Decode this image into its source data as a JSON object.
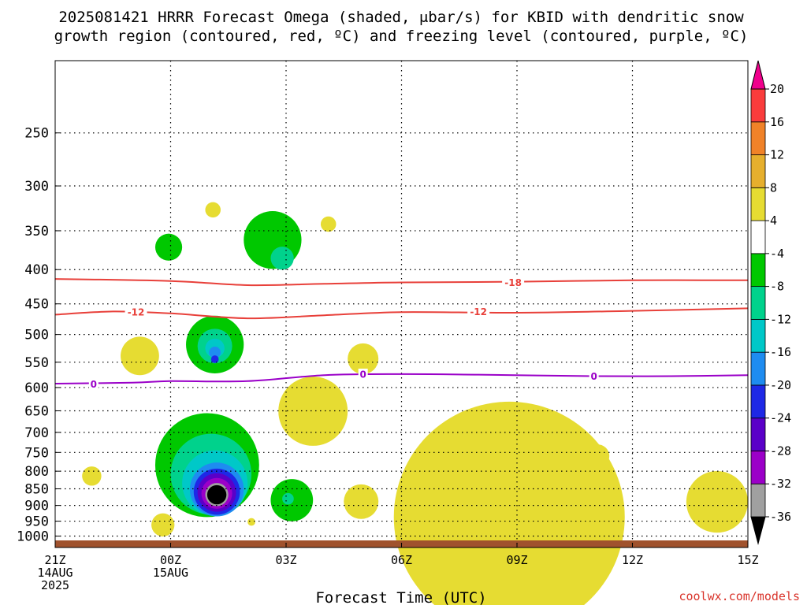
{
  "title_line1": "2025081421 HRRR Forecast Omega (shaded, μbar/s) for KBID with dendritic snow",
  "title_line2": "growth region (contoured, red, ºC) and freezing level (contoured, purple, ºC)",
  "credit": "coolwx.com/models",
  "chart_data": {
    "type": "heatmap",
    "title": "2025081421 HRRR Forecast Omega (shaded, μbar/s) for KBID with dendritic snow growth region (contoured, red, ºC) and freezing level (contoured, purple, ºC)",
    "xlabel": "Forecast Time (UTC)",
    "ylabel": "",
    "x_range_hours": [
      0,
      18
    ],
    "y_range_hPa": [
      1040,
      195
    ],
    "y_scale": "log-pressure",
    "grid": true,
    "x_ticks": [
      {
        "hour": 0,
        "lines": [
          "21Z",
          "14AUG",
          "2025"
        ]
      },
      {
        "hour": 3,
        "lines": [
          "00Z",
          "15AUG"
        ]
      },
      {
        "hour": 6,
        "lines": [
          "03Z"
        ]
      },
      {
        "hour": 9,
        "lines": [
          "06Z"
        ]
      },
      {
        "hour": 12,
        "lines": [
          "09Z"
        ]
      },
      {
        "hour": 15,
        "lines": [
          "12Z"
        ]
      },
      {
        "hour": 18,
        "lines": [
          "15Z"
        ]
      }
    ],
    "y_ticks": [
      250,
      300,
      350,
      400,
      450,
      500,
      550,
      600,
      650,
      700,
      750,
      800,
      850,
      900,
      950,
      1000
    ],
    "colorbar": {
      "levels": [
        -36,
        -32,
        -28,
        -24,
        -20,
        -16,
        -12,
        -8,
        -4,
        4,
        8,
        12,
        16,
        20
      ],
      "colors": [
        "#000000",
        "#a0a0a0",
        "#9b00c8",
        "#5a00c8",
        "#1e28e6",
        "#1e8cf0",
        "#00c8c8",
        "#00d28c",
        "#00c800",
        "#ffffff",
        "#e6dc32",
        "#e6af2d",
        "#f08228",
        "#fa3c3c",
        "#f0008c"
      ]
    },
    "ground_level_hPa": 1015,
    "ground_color": "#a0522d",
    "contours": [
      {
        "label": "-18",
        "color": "#e8403a",
        "points": [
          [
            0,
            413
          ],
          [
            3,
            416
          ],
          [
            5,
            422
          ],
          [
            7,
            420
          ],
          [
            9,
            418
          ],
          [
            12,
            417
          ],
          [
            15,
            415
          ],
          [
            18,
            415
          ]
        ],
        "label_positions": [
          [
            11.9,
            418
          ]
        ]
      },
      {
        "label": "-12",
        "color": "#e8403a",
        "points": [
          [
            0,
            467
          ],
          [
            1.5,
            462
          ],
          [
            3,
            465
          ],
          [
            5,
            473
          ],
          [
            7,
            468
          ],
          [
            9,
            463
          ],
          [
            12,
            464
          ],
          [
            15,
            461
          ],
          [
            18,
            457
          ]
        ],
        "label_positions": [
          [
            2.1,
            463
          ],
          [
            11.0,
            462
          ]
        ]
      },
      {
        "label": "0",
        "color": "#9a00c8",
        "points": [
          [
            0,
            592
          ],
          [
            2,
            590
          ],
          [
            3,
            587
          ],
          [
            5,
            587
          ],
          [
            7,
            575
          ],
          [
            9,
            573
          ],
          [
            11,
            574
          ],
          [
            14,
            577
          ],
          [
            16,
            577
          ],
          [
            18,
            575
          ]
        ],
        "label_positions": [
          [
            1.0,
            593
          ],
          [
            8.0,
            573
          ],
          [
            14.0,
            577
          ]
        ]
      }
    ],
    "omega_features": [
      {
        "level": 4,
        "t_range": [
          0.7,
          1.2
        ],
        "p_range": [
          752,
          880
        ]
      },
      {
        "level": 4,
        "t_range": [
          1.7,
          2.7
        ],
        "p_range": [
          478,
          606
        ]
      },
      {
        "level": -4,
        "t_range": [
          2.6,
          3.3
        ],
        "p_range": [
          328,
          418
        ]
      },
      {
        "level": 4,
        "t_range": [
          3.9,
          4.3
        ],
        "p_range": [
          293,
          362
        ]
      },
      {
        "level": -4,
        "t_range": [
          4.9,
          6.4
        ],
        "p_range": [
          285,
          458
        ]
      },
      {
        "level": -8,
        "t_range": [
          5.6,
          6.2
        ],
        "p_range": [
          367,
          403
        ]
      },
      {
        "level": 4,
        "t_range": [
          6.9,
          7.3
        ],
        "p_range": [
          318,
          368
        ]
      },
      {
        "level": -4,
        "t_range": [
          3.4,
          4.9
        ],
        "p_range": [
          432,
          620
        ]
      },
      {
        "level": -8,
        "t_range": [
          3.7,
          4.6
        ],
        "p_range": [
          455,
          595
        ]
      },
      {
        "level": -12,
        "t_range": [
          3.9,
          4.4
        ],
        "p_range": [
          482,
          570
        ]
      },
      {
        "level": -16,
        "t_range": [
          4.0,
          4.3
        ],
        "p_range": [
          505,
          560
        ]
      },
      {
        "level": -20,
        "t_range": [
          4.05,
          4.25
        ],
        "p_range": [
          520,
          570
        ]
      },
      {
        "level": -4,
        "t_range": [
          2.6,
          5.3
        ],
        "p_range": [
          620,
          990
        ]
      },
      {
        "level": -8,
        "t_range": [
          3.0,
          5.1
        ],
        "p_range": [
          670,
          975
        ]
      },
      {
        "level": -12,
        "t_range": [
          3.3,
          5.0
        ],
        "p_range": [
          720,
          965
        ]
      },
      {
        "level": -16,
        "t_range": [
          3.5,
          4.9
        ],
        "p_range": [
          760,
          955
        ]
      },
      {
        "level": -20,
        "t_range": [
          3.6,
          4.8
        ],
        "p_range": [
          780,
          945
        ]
      },
      {
        "level": -24,
        "t_range": [
          3.7,
          4.7
        ],
        "p_range": [
          790,
          938
        ]
      },
      {
        "level": -28,
        "t_range": [
          3.8,
          4.6
        ],
        "p_range": [
          800,
          932
        ]
      },
      {
        "level": -32,
        "t_range": [
          3.9,
          4.5
        ],
        "p_range": [
          810,
          928
        ]
      },
      {
        "level": -36,
        "t_range": [
          3.95,
          4.45
        ],
        "p_range": [
          818,
          920
        ]
      },
      {
        "level": 4,
        "t_range": [
          2.5,
          3.1
        ],
        "p_range": [
          940,
          985
        ]
      },
      {
        "level": 4,
        "t_range": [
          5.0,
          5.2
        ],
        "p_range": [
          935,
          970
        ]
      },
      {
        "level": -4,
        "t_range": [
          5.6,
          6.7
        ],
        "p_range": [
          818,
          955
        ]
      },
      {
        "level": -8,
        "t_range": [
          5.9,
          6.2
        ],
        "p_range": [
          858,
          902
        ]
      },
      {
        "level": 4,
        "t_range": [
          5.8,
          7.6
        ],
        "p_range": [
          590,
          718
        ]
      },
      {
        "level": 4,
        "t_range": [
          7.6,
          8.4
        ],
        "p_range": [
          505,
          585
        ]
      },
      {
        "level": 4,
        "t_range": [
          7.5,
          8.4
        ],
        "p_range": [
          822,
          960
        ]
      },
      {
        "level": 4,
        "t_range": [
          9.7,
          10.3
        ],
        "p_range": [
          790,
          870
        ]
      },
      {
        "level": 4,
        "t_range": [
          8.8,
          14.8
        ],
        "p_range": [
          900,
          975
        ]
      },
      {
        "level": 4,
        "t_range": [
          13.8,
          14.4
        ],
        "p_range": [
          730,
          790
        ]
      },
      {
        "level": 4,
        "t_range": [
          16.4,
          18.0
        ],
        "p_range": [
          832,
          950
        ]
      }
    ]
  }
}
